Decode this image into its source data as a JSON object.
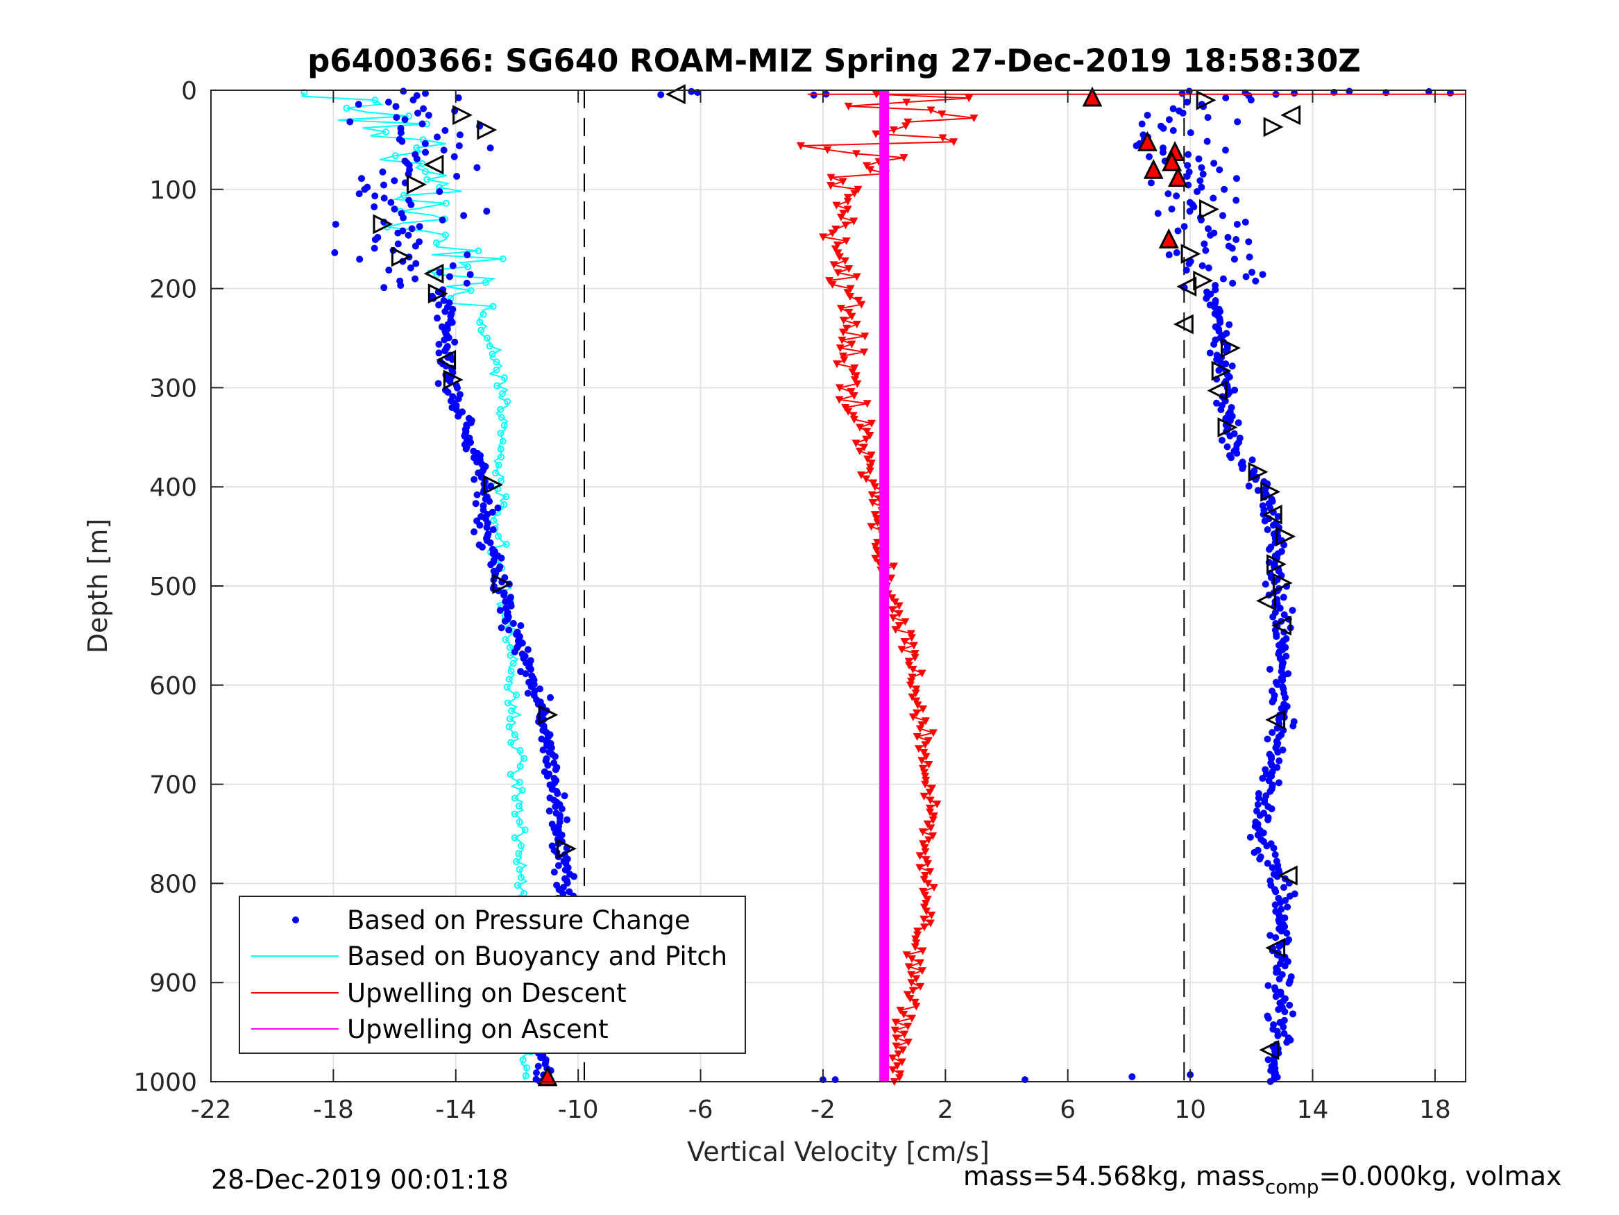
{
  "chart_data": {
    "type": "scatter",
    "title": "p6400366: SG640 ROAM-MIZ Spring 27-Dec-2019 18:58:30Z",
    "xlabel": "Vertical Velocity [cm/s]",
    "ylabel": "Depth [m]",
    "xlim": [
      -22,
      19
    ],
    "ylim": [
      0,
      1000
    ],
    "y_reversed": true,
    "grid": true,
    "legend_position": "bottom-left",
    "xticks": [
      -22,
      -18,
      -14,
      -10,
      -6,
      -2,
      2,
      6,
      10,
      14,
      18
    ],
    "yticks": [
      0,
      100,
      200,
      300,
      400,
      500,
      600,
      700,
      800,
      900,
      1000
    ],
    "reference_lines": [
      -9.8,
      9.8
    ],
    "series": [
      {
        "name": "Based on Pressure Change",
        "color": "#0000ff",
        "marker": "dot",
        "descent_profile": {
          "depth": [
            0,
            50,
            100,
            150,
            200,
            250,
            300,
            350,
            400,
            450,
            500,
            550,
            600,
            650,
            700,
            750,
            800,
            850,
            900,
            950,
            1000
          ],
          "velocity": [
            -15.5,
            -14.8,
            -15.5,
            -15.8,
            -14.6,
            -14.3,
            -14.2,
            -13.6,
            -13.0,
            -13.0,
            -12.6,
            -12.0,
            -11.4,
            -11.0,
            -10.8,
            -10.6,
            -10.4,
            -10.6,
            -10.8,
            -11.0,
            -11.2
          ]
        },
        "ascent_profile": {
          "depth": [
            0,
            50,
            100,
            150,
            200,
            250,
            300,
            350,
            400,
            450,
            500,
            550,
            600,
            650,
            700,
            750,
            800,
            850,
            900,
            950,
            1000
          ],
          "velocity": [
            11.0,
            9.2,
            10.0,
            10.6,
            10.7,
            11.0,
            11.1,
            11.3,
            12.3,
            12.8,
            12.8,
            13.0,
            13.0,
            12.9,
            12.4,
            12.3,
            13.0,
            12.9,
            13.0,
            13.0,
            12.5
          ]
        }
      },
      {
        "name": "Based on Buoyancy and Pitch",
        "color": "#00ffff",
        "marker": "circle-line",
        "descent_profile": {
          "depth": [
            0,
            50,
            100,
            150,
            200,
            250,
            300,
            350,
            400,
            450,
            500,
            550,
            600,
            650,
            700,
            750,
            800,
            850,
            900,
            950,
            1000
          ],
          "velocity": [
            -17.0,
            -15.8,
            -15.0,
            -14.3,
            -13.6,
            -12.9,
            -12.5,
            -12.5,
            -12.6,
            -12.7,
            -12.4,
            -12.2,
            -12.2,
            -12.1,
            -12.0,
            -11.9,
            -11.8,
            -11.8,
            -11.8,
            -11.8,
            -11.6
          ]
        }
      },
      {
        "name": "Upwelling on Descent",
        "color": "#ff0000",
        "marker": "triangle-down",
        "profile": {
          "depth": [
            5,
            50,
            100,
            150,
            200,
            250,
            300,
            350,
            400,
            450,
            500,
            550,
            600,
            650,
            700,
            750,
            800,
            850,
            900,
            950,
            1000
          ],
          "velocity": [
            0.5,
            0.3,
            -1.0,
            -1.5,
            -1.2,
            -1.2,
            -1.0,
            -0.8,
            -0.3,
            -0.1,
            0.0,
            0.7,
            1.0,
            1.3,
            1.4,
            1.5,
            1.4,
            1.2,
            0.9,
            0.6,
            0.4
          ]
        }
      },
      {
        "name": "Upwelling on Ascent",
        "color": "#ff00ff",
        "marker": "line",
        "profile": {
          "depth": [
            0,
            1000
          ],
          "velocity": [
            0.0,
            0.0
          ]
        }
      }
    ],
    "annotations_text": []
  },
  "footer": {
    "timestamp": "28-Dec-2019 00:01:18",
    "mass_text": "mass=54.568kg, mass",
    "mass_sub": "comp",
    "mass_rest": "=0.000kg, volmax"
  }
}
